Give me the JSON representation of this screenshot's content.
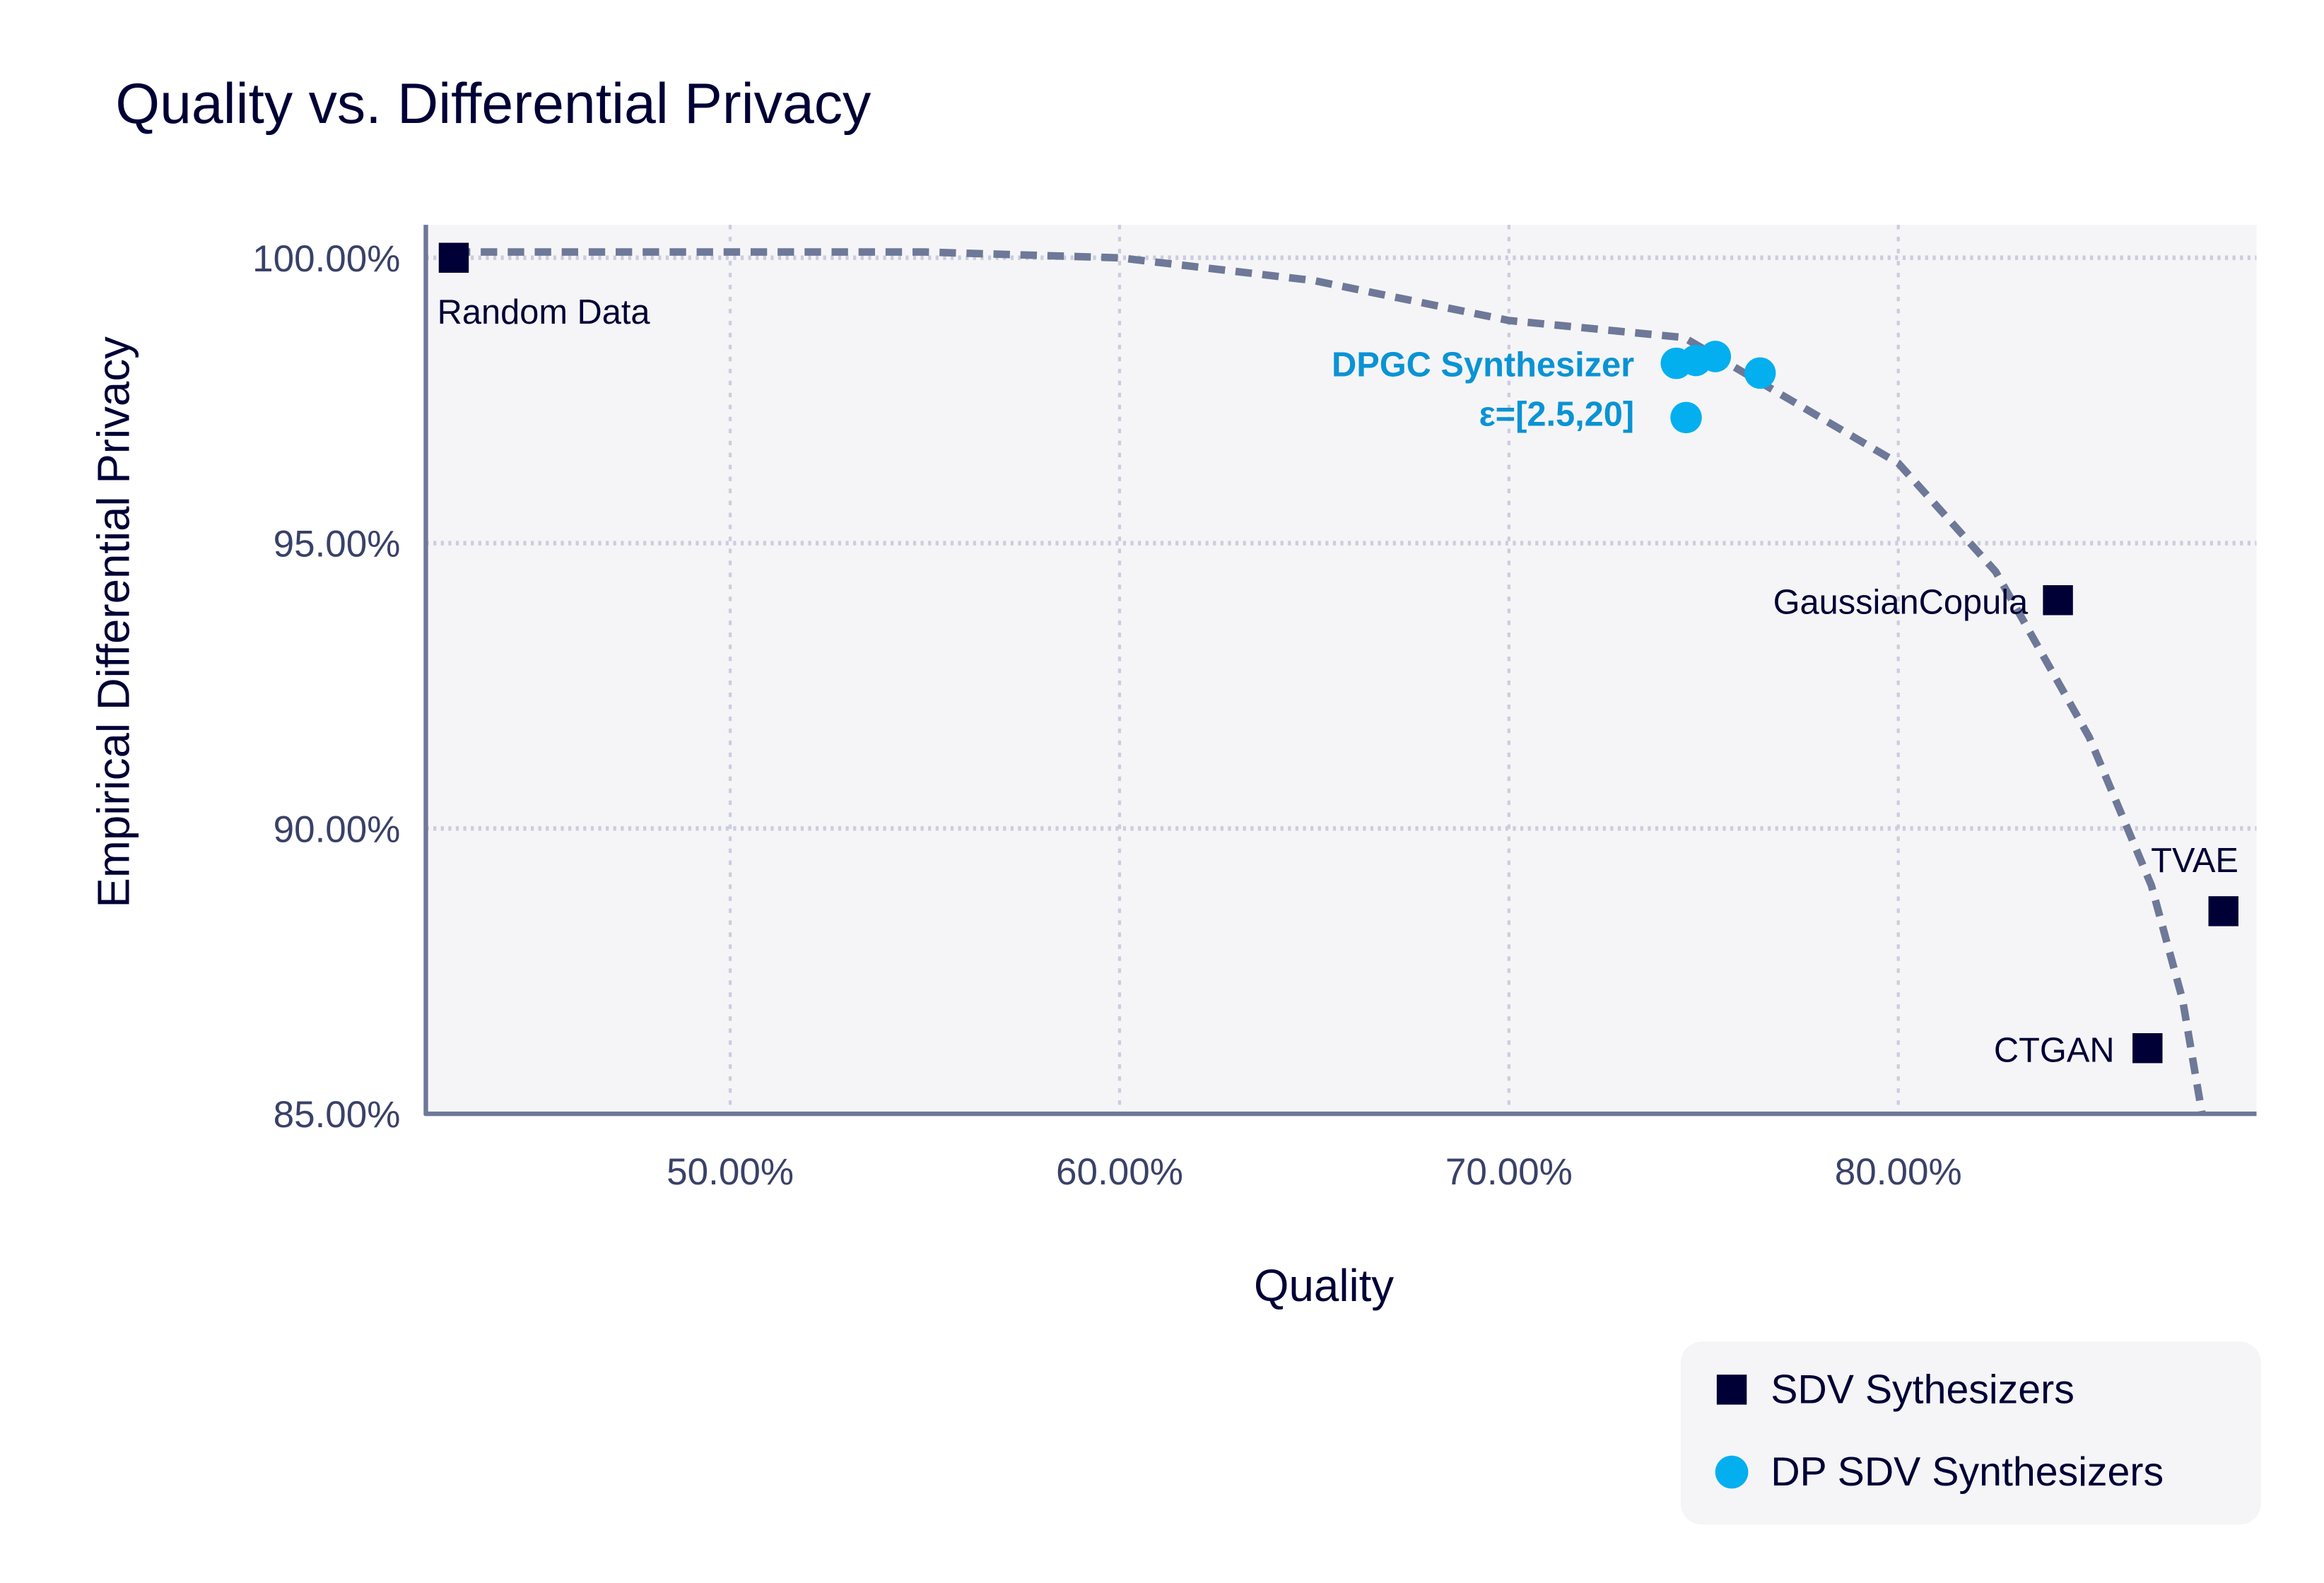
{
  "chart_data": {
    "type": "scatter",
    "title": "Quality vs. Differential Privacy",
    "xlabel": "Quality",
    "ylabel": "Empirical Differential Privacy",
    "xlim": [
      42.2,
      89.2
    ],
    "ylim": [
      85,
      100.6
    ],
    "xticks": [
      50,
      60,
      70,
      80
    ],
    "xtick_labels": [
      "50.00%",
      "60.00%",
      "70.00%",
      "80.00%"
    ],
    "yticks": [
      85,
      90,
      95,
      100
    ],
    "ytick_labels": [
      "85.00%",
      "90.00%",
      "95.00%",
      "100.00%"
    ],
    "grid": true,
    "legend_position": "bottom-right",
    "colors": {
      "sdv": "#000036",
      "dp": "#03AFEF",
      "frontier": "#6E7898",
      "dp_label": "#0A93D4",
      "text": "#000036",
      "tick": "#3A4168",
      "plot_bg": "#F5F5F7",
      "grid": "#CCCCE0"
    },
    "series": [
      {
        "name": "SDV Sythesizers",
        "marker": "square",
        "points": [
          {
            "label": "Random Data",
            "x": 42.9,
            "y": 100.0
          },
          {
            "label": "GaussianCopula",
            "x": 84.1,
            "y": 94.0
          },
          {
            "label": "TVAE",
            "x": 88.35,
            "y": 88.55
          },
          {
            "label": "CTGAN",
            "x": 86.4,
            "y": 86.15
          }
        ]
      },
      {
        "name": "DP SDV Synthesizers",
        "marker": "circle",
        "points": [
          {
            "x": 74.3,
            "y": 98.15
          },
          {
            "x": 74.8,
            "y": 98.2
          },
          {
            "x": 75.3,
            "y": 98.27
          },
          {
            "x": 76.45,
            "y": 97.98
          },
          {
            "x": 74.55,
            "y": 97.2
          }
        ]
      }
    ],
    "dp_annotation": [
      "DPGC Synthesizer",
      "ε=[2.5,20]"
    ],
    "frontier": {
      "x": [
        42.9,
        50,
        55,
        60,
        65,
        70,
        74.5,
        76.5,
        80,
        82.5,
        84.9,
        86.5,
        87.3,
        87.8
      ],
      "y": [
        100.1,
        100.1,
        100.1,
        100.0,
        99.6,
        98.9,
        98.6,
        97.8,
        96.4,
        94.5,
        91.6,
        89.0,
        87.0,
        85.0
      ]
    }
  }
}
